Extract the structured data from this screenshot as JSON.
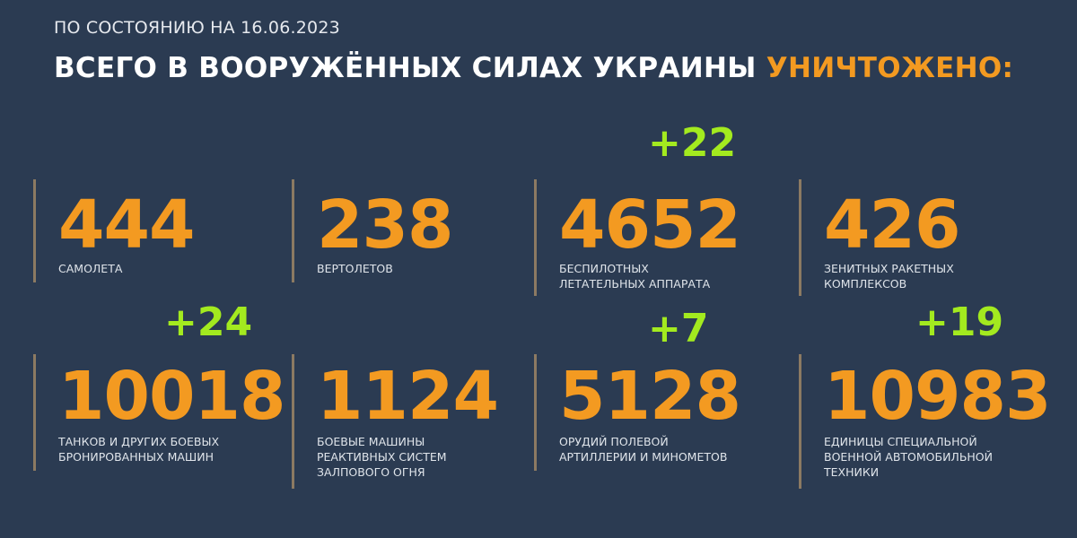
{
  "header": {
    "subtitle": "ПО СОСТОЯНИЮ НА 16.06.2023",
    "title_main": "ВСЕГО В ВООРУЖЁННЫХ СИЛАХ УКРАИНЫ",
    "title_highlight": "УНИЧТОЖЕНО:"
  },
  "colors": {
    "background": "#2b3b52",
    "number": "#f39a21",
    "delta": "#a3ea1f"
  },
  "stats": [
    {
      "value": "444",
      "label": "самолета",
      "delta": ""
    },
    {
      "value": "238",
      "label": "вертолетов",
      "delta": ""
    },
    {
      "value": "4652",
      "label": "беспилотных\nлетательных аппарата",
      "delta": "+22"
    },
    {
      "value": "426",
      "label": "зенитных ракетных\nкомплексов",
      "delta": ""
    },
    {
      "value": "10018",
      "label": "танков и других боевых\nбронированных машин",
      "delta": "+24"
    },
    {
      "value": "1124",
      "label": "боевые машины\nреактивных систем\nзалпового огня",
      "delta": ""
    },
    {
      "value": "5128",
      "label": "орудий полевой\nартиллерии и минометов",
      "delta": "+7"
    },
    {
      "value": "10983",
      "label": "единицы специальной\nвоенной автомобильной\nтехники",
      "delta": "+19"
    }
  ]
}
